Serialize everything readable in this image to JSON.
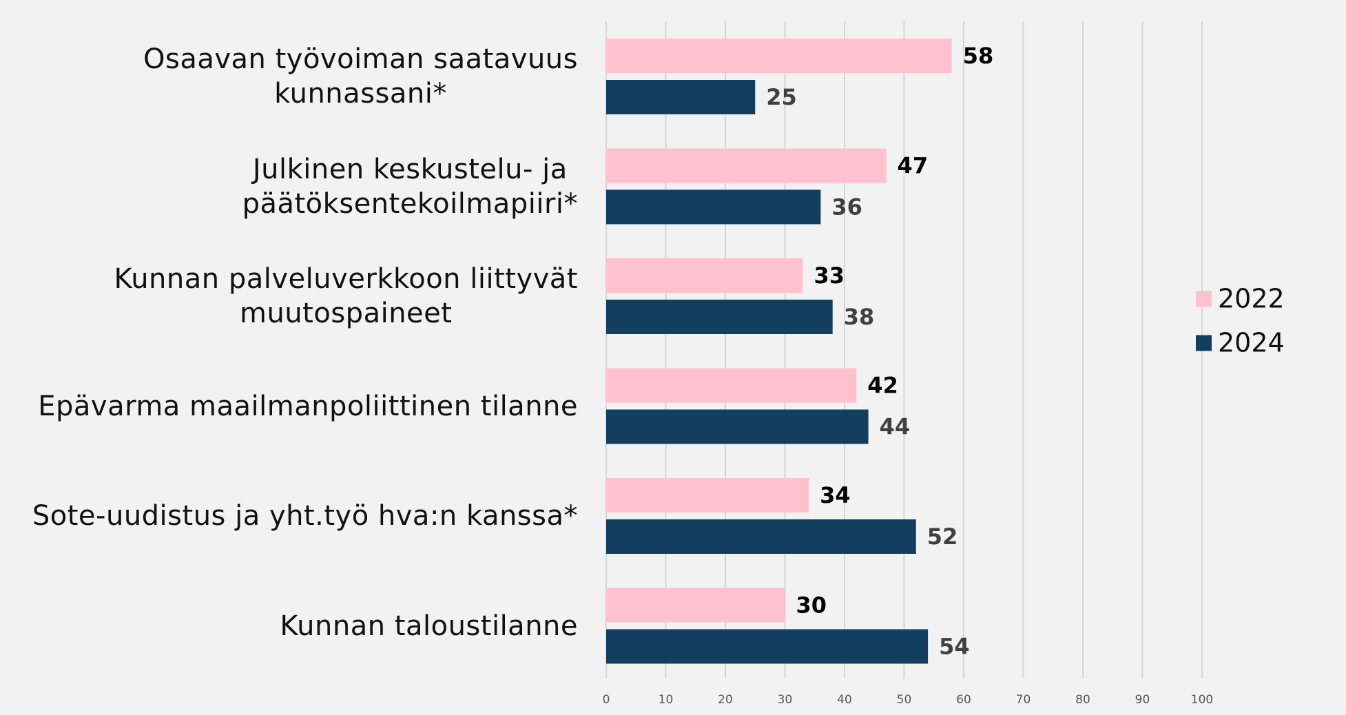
{
  "chart_data": {
    "type": "bar",
    "orientation": "horizontal",
    "categories": [
      "Osaavan työvoiman saatavuus\nkunnassani*",
      "Julkinen keskustelu- ja\npäätöksentekoilmapiiri*",
      "Kunnan palveluverkkoon liittyvät\nmuutospaineet",
      "Epävarma maailmanpoliittinen tilanne",
      "Sote-uudistus ja yht.työ hva:n kanssa*",
      "Kunnan taloustilanne"
    ],
    "series": [
      {
        "name": "2022",
        "color": "#ffc0cf",
        "values": [
          58,
          47,
          33,
          42,
          34,
          30
        ]
      },
      {
        "name": "2024",
        "color": "#123f5f",
        "values": [
          25,
          36,
          38,
          44,
          52,
          54
        ]
      }
    ],
    "xlim": [
      0,
      100
    ],
    "xticks": [
      0,
      10,
      20,
      30,
      40,
      50,
      60,
      70,
      80,
      90,
      100
    ],
    "grid": true,
    "legend": "right"
  }
}
